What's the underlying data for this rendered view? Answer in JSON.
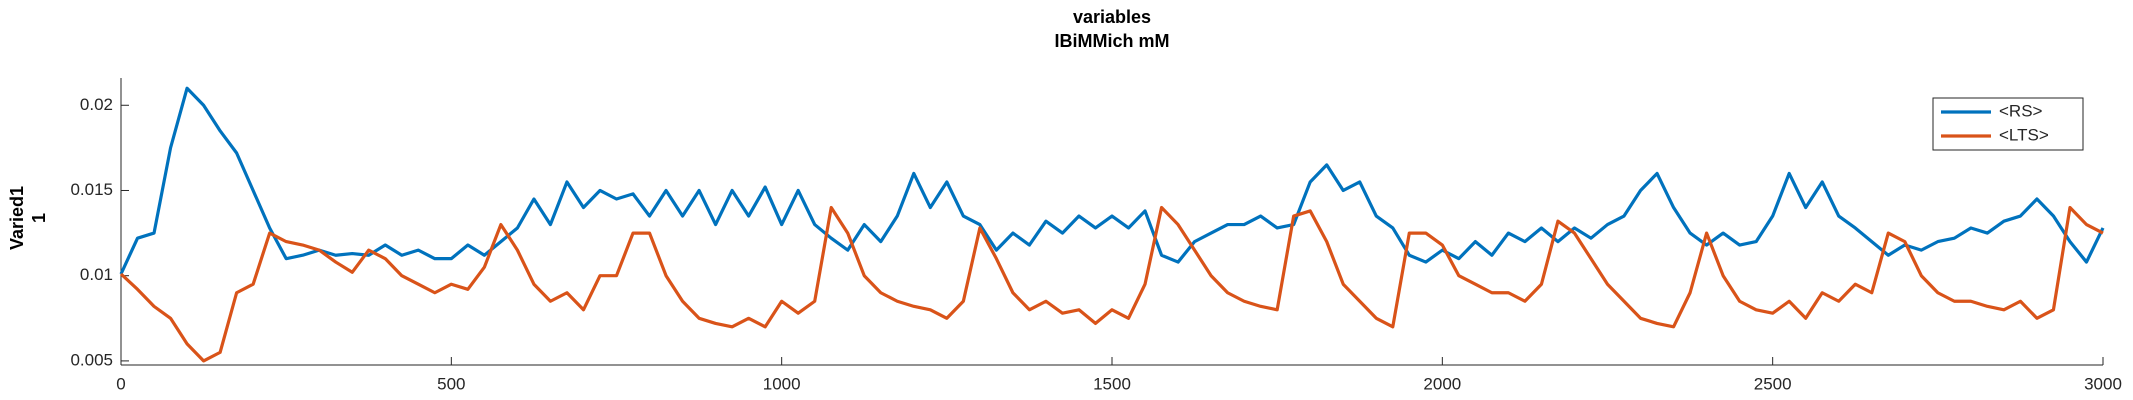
{
  "chart_data": {
    "type": "line",
    "title": "variables",
    "subtitle": "IBiMMich mM",
    "y_label": [
      "Varied1",
      "1"
    ],
    "x": [
      0,
      25,
      50,
      75,
      100,
      125,
      150,
      175,
      200,
      225,
      250,
      275,
      300,
      325,
      350,
      375,
      400,
      425,
      450,
      475,
      500,
      525,
      550,
      575,
      600,
      625,
      650,
      675,
      700,
      725,
      750,
      775,
      800,
      825,
      850,
      875,
      900,
      925,
      950,
      975,
      1000,
      1025,
      1050,
      1075,
      1100,
      1125,
      1150,
      1175,
      1200,
      1225,
      1250,
      1275,
      1300,
      1325,
      1350,
      1375,
      1400,
      1425,
      1450,
      1475,
      1500,
      1525,
      1550,
      1575,
      1600,
      1625,
      1650,
      1675,
      1700,
      1725,
      1750,
      1775,
      1800,
      1825,
      1850,
      1875,
      1900,
      1925,
      1950,
      1975,
      2000,
      2025,
      2050,
      2075,
      2100,
      2125,
      2150,
      2175,
      2200,
      2225,
      2250,
      2275,
      2300,
      2325,
      2350,
      2375,
      2400,
      2425,
      2450,
      2475,
      2500,
      2525,
      2550,
      2575,
      2600,
      2625,
      2650,
      2675,
      2700,
      2725,
      2750,
      2775,
      2800,
      2825,
      2850,
      2875,
      2900,
      2925,
      2950,
      2975,
      3000
    ],
    "series": [
      {
        "name": "<RS>",
        "color": "#0072bd",
        "values": [
          0.0101,
          0.0122,
          0.0125,
          0.0175,
          0.021,
          0.02,
          0.0185,
          0.0172,
          0.015,
          0.0128,
          0.011,
          0.0112,
          0.0115,
          0.0112,
          0.0113,
          0.0112,
          0.0118,
          0.0112,
          0.0115,
          0.011,
          0.011,
          0.0118,
          0.0112,
          0.012,
          0.0128,
          0.0145,
          0.013,
          0.0155,
          0.014,
          0.015,
          0.0145,
          0.0148,
          0.0135,
          0.015,
          0.0135,
          0.015,
          0.013,
          0.015,
          0.0135,
          0.0152,
          0.013,
          0.015,
          0.013,
          0.0122,
          0.0115,
          0.013,
          0.012,
          0.0135,
          0.016,
          0.014,
          0.0155,
          0.0135,
          0.013,
          0.0115,
          0.0125,
          0.0118,
          0.0132,
          0.0125,
          0.0135,
          0.0128,
          0.0135,
          0.0128,
          0.0138,
          0.0112,
          0.0108,
          0.012,
          0.0125,
          0.013,
          0.013,
          0.0135,
          0.0128,
          0.013,
          0.0155,
          0.0165,
          0.015,
          0.0155,
          0.0135,
          0.0128,
          0.0112,
          0.0108,
          0.0115,
          0.011,
          0.012,
          0.0112,
          0.0125,
          0.012,
          0.0128,
          0.012,
          0.0128,
          0.0122,
          0.013,
          0.0135,
          0.015,
          0.016,
          0.014,
          0.0125,
          0.0118,
          0.0125,
          0.0118,
          0.012,
          0.0135,
          0.016,
          0.014,
          0.0155,
          0.0135,
          0.0128,
          0.012,
          0.0112,
          0.0118,
          0.0115,
          0.012,
          0.0122,
          0.0128,
          0.0125,
          0.0132,
          0.0135,
          0.0145,
          0.0135,
          0.012,
          0.0108,
          0.0128
        ]
      },
      {
        "name": "<LTS>",
        "color": "#d95319",
        "values": [
          0.0101,
          0.0092,
          0.0082,
          0.0075,
          0.006,
          0.005,
          0.0055,
          0.009,
          0.0095,
          0.0125,
          0.012,
          0.0118,
          0.0115,
          0.0108,
          0.0102,
          0.0115,
          0.011,
          0.01,
          0.0095,
          0.009,
          0.0095,
          0.0092,
          0.0105,
          0.013,
          0.0115,
          0.0095,
          0.0085,
          0.009,
          0.008,
          0.01,
          0.01,
          0.0125,
          0.0125,
          0.01,
          0.0085,
          0.0075,
          0.0072,
          0.007,
          0.0075,
          0.007,
          0.0085,
          0.0078,
          0.0085,
          0.014,
          0.0125,
          0.01,
          0.009,
          0.0085,
          0.0082,
          0.008,
          0.0075,
          0.0085,
          0.0128,
          0.011,
          0.009,
          0.008,
          0.0085,
          0.0078,
          0.008,
          0.0072,
          0.008,
          0.0075,
          0.0095,
          0.014,
          0.013,
          0.0115,
          0.01,
          0.009,
          0.0085,
          0.0082,
          0.008,
          0.0135,
          0.0138,
          0.012,
          0.0095,
          0.0085,
          0.0075,
          0.007,
          0.0125,
          0.0125,
          0.0118,
          0.01,
          0.0095,
          0.009,
          0.009,
          0.0085,
          0.0095,
          0.0132,
          0.0125,
          0.011,
          0.0095,
          0.0085,
          0.0075,
          0.0072,
          0.007,
          0.009,
          0.0125,
          0.01,
          0.0085,
          0.008,
          0.0078,
          0.0085,
          0.0075,
          0.009,
          0.0085,
          0.0095,
          0.009,
          0.0125,
          0.012,
          0.01,
          0.009,
          0.0085,
          0.0085,
          0.0082,
          0.008,
          0.0085,
          0.0075,
          0.008,
          0.014,
          0.013,
          0.0125
        ]
      }
    ],
    "xlim": [
      0,
      3000
    ],
    "xticks": [
      0,
      500,
      1000,
      1500,
      2000,
      2500,
      3000
    ],
    "ylim": [
      0.00476,
      0.0216
    ],
    "yticks": [
      0.005,
      0.01,
      0.015,
      0.02
    ],
    "legend": "northeast"
  }
}
